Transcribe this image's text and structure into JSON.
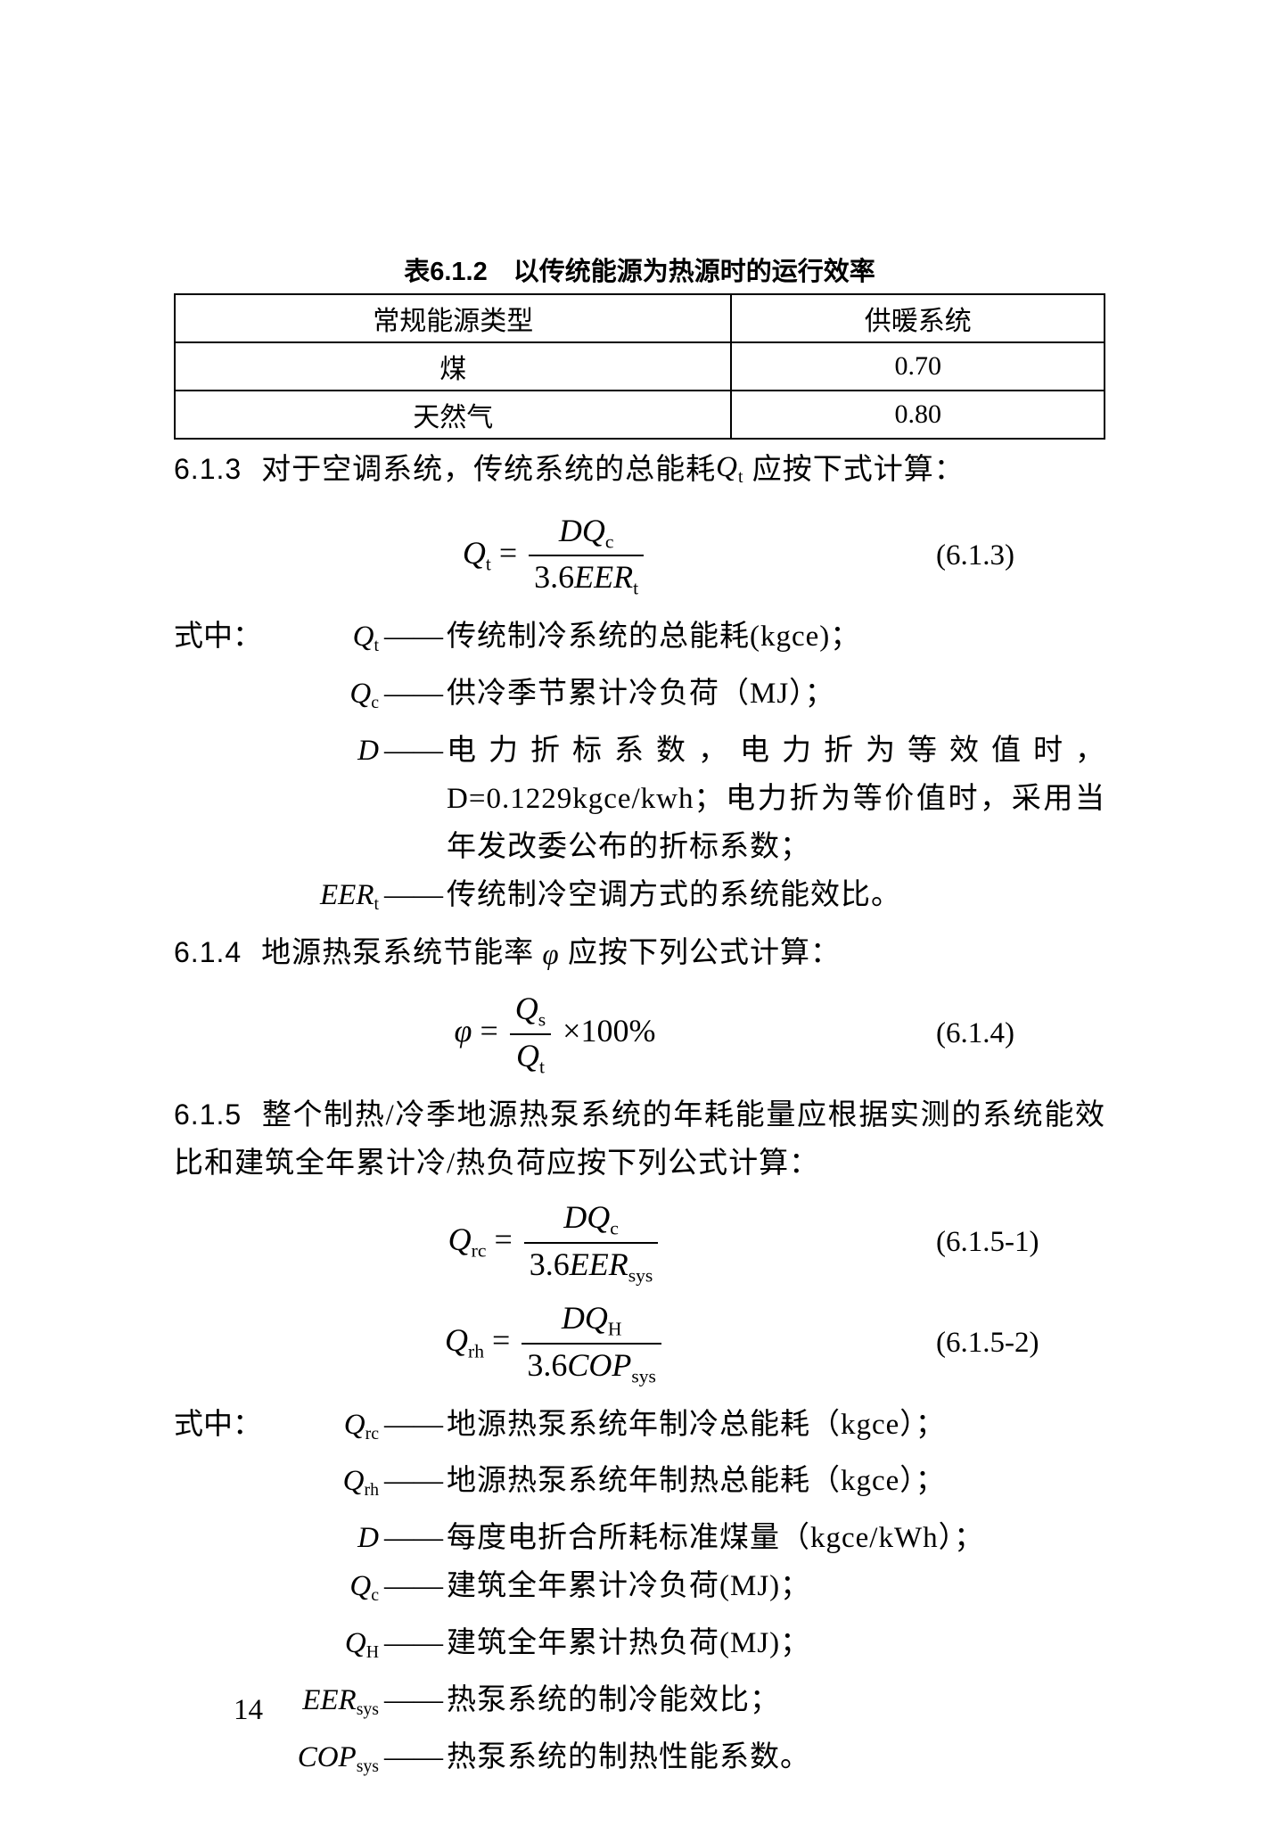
{
  "table": {
    "caption": "表6.1.2　以传统能源为热源时的运行效率",
    "col1_header": "常规能源类型",
    "col2_header": "供暖系统",
    "rows": [
      {
        "c1": "煤",
        "c2": "0.70"
      },
      {
        "c1": "天然气",
        "c2": "0.80"
      }
    ],
    "col_widths_pct": [
      50,
      50
    ]
  },
  "sec613": {
    "num": "6.1.3",
    "text_before": "对于空调系统，传统系统的总能耗",
    "sym": "Q_t",
    "text_after": " 应按下式计算：",
    "eq": {
      "lhs_base": "Q",
      "lhs_sub": "t",
      "num_base": "DQ",
      "num_sub": "c",
      "den_left": "3.6",
      "den_base": "EER",
      "den_sub": "t",
      "num_label": "(6.1.3)"
    },
    "defs_lead": "式中：",
    "defs": [
      {
        "base": "Q",
        "sub": "t",
        "txt": "传统制冷系统的总能耗(kgce)；"
      },
      {
        "base": "Q",
        "sub": "c",
        "txt": "供冷季节累计冷负荷（MJ）；"
      },
      {
        "base": "D",
        "sub": "",
        "txt": "电力折标系数，电力折为等效值时，D=0.1229kgce/kwh；电力折为等价值时，采用当年发改委公布的折标系数；"
      },
      {
        "base": "EER",
        "sub": "t",
        "txt": "传统制冷空调方式的系统能效比。"
      }
    ]
  },
  "sec614": {
    "num": "6.1.4",
    "text_before": "地源热泵系统节能率 ",
    "sym": "φ",
    "text_after": " 应按下列公式计算：",
    "eq": {
      "lhs_sym": "φ",
      "num_base": "Q",
      "num_sub": "s",
      "den_base": "Q",
      "den_sub": "t",
      "tail": "×100%",
      "num_label": "(6.1.4)"
    }
  },
  "sec615": {
    "num": "6.1.5",
    "text": "整个制热/冷季地源热泵系统的年耗能量应根据实测的系统能效比和建筑全年累计冷/热负荷应按下列公式计算：",
    "eq1": {
      "lhs_base": "Q",
      "lhs_sub": "rc",
      "num_base": "DQ",
      "num_sub": "c",
      "den_left": "3.6",
      "den_base": "EER",
      "den_sub": "sys",
      "num_label": "(6.1.5-1)"
    },
    "eq2": {
      "lhs_base": "Q",
      "lhs_sub": "rh",
      "num_base": "DQ",
      "num_sub": "H",
      "den_left": "3.6",
      "den_base": "COP",
      "den_sub": "sys",
      "num_label": "(6.1.5-2)"
    },
    "defs_lead": "式中：",
    "defs": [
      {
        "base": "Q",
        "sub": "rc",
        "txt": "地源热泵系统年制冷总能耗（kgce）；"
      },
      {
        "base": "Q",
        "sub": "rh",
        "txt": "地源热泵系统年制热总能耗（kgce）；"
      },
      {
        "base": "D",
        "sub": "",
        "txt": "每度电折合所耗标准煤量（kgce/kWh）；"
      },
      {
        "base": "Q",
        "sub": "c",
        "txt": "建筑全年累计冷负荷(MJ)；"
      },
      {
        "base": "Q",
        "sub": "H",
        "txt": "建筑全年累计热负荷(MJ)；"
      },
      {
        "base": "EER",
        "sub": "sys",
        "txt": "热泵系统的制冷能效比；"
      },
      {
        "base": "COP",
        "sub": "sys",
        "txt": "热泵系统的制热性能系数。"
      }
    ]
  },
  "page_number": "14",
  "dash": "——"
}
